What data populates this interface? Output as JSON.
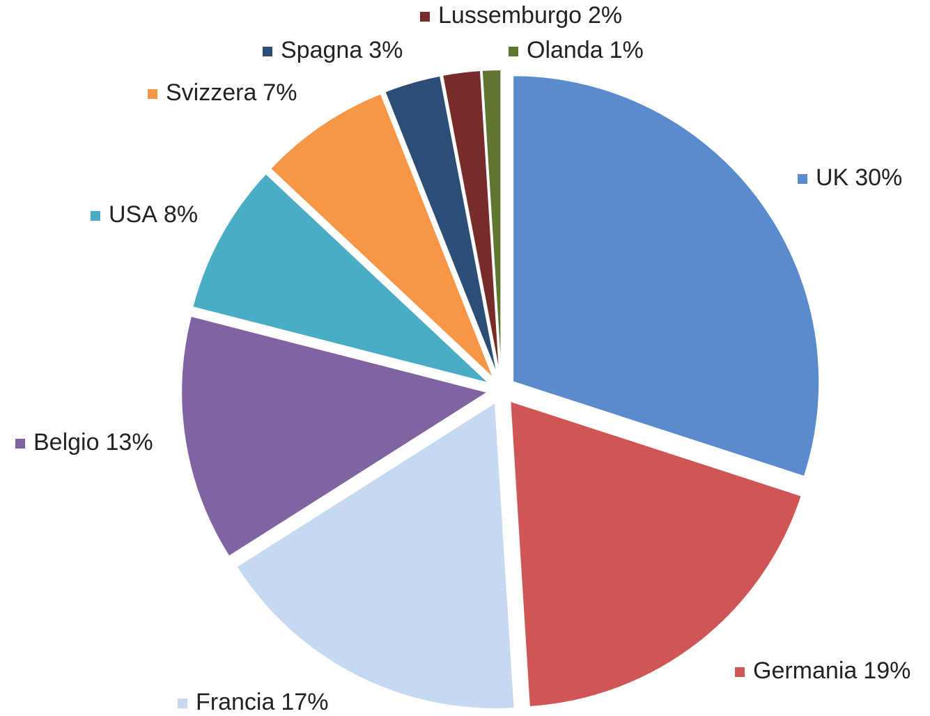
{
  "chart_data": {
    "type": "pie",
    "categories": [
      "UK",
      "Germania",
      "Francia",
      "Belgio",
      "USA",
      "Svizzera",
      "Spagna",
      "Lussemburgo",
      "Olanda"
    ],
    "values": [
      30,
      19,
      17,
      13,
      8,
      7,
      3,
      2,
      1
    ],
    "value_labels": [
      "30%",
      "19%",
      "17%",
      "13%",
      "8%",
      "7%",
      "3%",
      "2%",
      "1%"
    ],
    "colors": [
      "#5a8bcc",
      "#d05555",
      "#c5d9f1",
      "#8064a2",
      "#4bacc6",
      "#f79646",
      "#2c4d75",
      "#772c2a",
      "#5f7530"
    ]
  }
}
